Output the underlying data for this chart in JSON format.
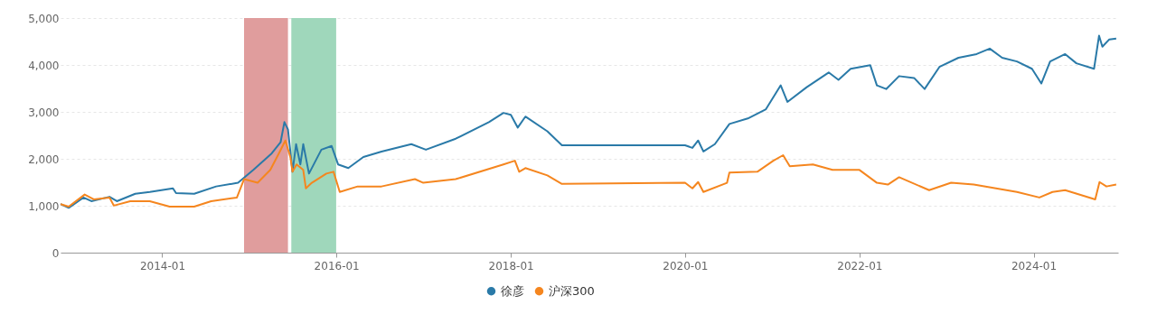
{
  "chart_data": {
    "type": "line",
    "xlim": [
      "2012-11-01",
      "2024-12-20"
    ],
    "xticks": [
      "2014-01",
      "2016-01",
      "2018-01",
      "2020-01",
      "2022-01",
      "2024-01"
    ],
    "ylim": [
      0,
      5000
    ],
    "yticks": [
      0,
      {
        "value": 1000,
        "label": "1,000"
      },
      {
        "value": 2000,
        "label": "2,000"
      },
      {
        "value": 3000,
        "label": "3,000"
      },
      {
        "value": 4000,
        "label": "4,000"
      },
      {
        "value": 5000,
        "label": "5,000"
      }
    ],
    "grid": "y",
    "legend": "bottom",
    "marker": "none",
    "line_style": "solid",
    "bands": [
      {
        "axis": "x",
        "from": "2014-12-10",
        "to": "2015-06-12",
        "color": "#e09d9d"
      },
      {
        "axis": "x",
        "from": "2015-06-26",
        "to": "2015-12-31",
        "color": "#9fd7bb"
      }
    ],
    "series": [
      {
        "name": "徐彦",
        "color": "#2a7aa8",
        "x": [
          "2012-11-01",
          "2012-12-05",
          "2013-02-05",
          "2013-03-10",
          "2013-05-25",
          "2013-06-25",
          "2013-09-10",
          "2013-11-10",
          "2014-02-15",
          "2014-02-28",
          "2014-05-15",
          "2014-08-15",
          "2014-11-15",
          "2015-01-18",
          "2015-04-05",
          "2015-05-12",
          "2015-05-28",
          "2015-06-12",
          "2015-07-01",
          "2015-07-16",
          "2015-08-03",
          "2015-08-15",
          "2015-09-08",
          "2015-10-30",
          "2015-12-12",
          "2016-01-08",
          "2016-02-20",
          "2016-04-23",
          "2016-07-08",
          "2016-11-10",
          "2017-01-10",
          "2017-05-15",
          "2017-10-01",
          "2017-12-01",
          "2018-01-01",
          "2018-01-30",
          "2018-03-03",
          "2018-06-03",
          "2018-08-03",
          "2020-01-01",
          "2020-02-01",
          "2020-02-25",
          "2020-03-18",
          "2020-05-05",
          "2020-07-05",
          "2020-09-20",
          "2020-12-05",
          "2021-02-05",
          "2021-03-05",
          "2021-05-25",
          "2021-08-25",
          "2021-10-05",
          "2021-11-25",
          "2022-02-15",
          "2022-03-15",
          "2022-04-23",
          "2022-06-16",
          "2022-08-18",
          "2022-10-01",
          "2022-12-02",
          "2023-02-20",
          "2023-05-07",
          "2023-07-01",
          "2023-08-22",
          "2023-10-23",
          "2023-12-25",
          "2024-02-02",
          "2024-03-10",
          "2024-05-12",
          "2024-06-28",
          "2024-09-10",
          "2024-10-01",
          "2024-10-15",
          "2024-11-13",
          "2024-12-12"
        ],
        "values": [
          1035,
          955,
          1175,
          1097,
          1190,
          1097,
          1254,
          1293,
          1371,
          1270,
          1254,
          1411,
          1489,
          1763,
          2116,
          2351,
          2782,
          2625,
          1724,
          2312,
          1881,
          2312,
          1685,
          2194,
          2273,
          1881,
          1802,
          2038,
          2155,
          2312,
          2194,
          2429,
          2782,
          2978,
          2939,
          2665,
          2900,
          2586,
          2288,
          2288,
          2233,
          2390,
          2155,
          2312,
          2743,
          2860,
          3056,
          3566,
          3213,
          3527,
          3840,
          3683,
          3918,
          3997,
          3566,
          3487,
          3762,
          3723,
          3487,
          3958,
          4154,
          4232,
          4349,
          4154,
          4075,
          3918,
          3605,
          4075,
          4232,
          4036,
          3918,
          4624,
          4389,
          4545,
          4561
        ]
      },
      {
        "name": "沪深300",
        "color": "#f5861f",
        "x": [
          "2012-11-01",
          "2012-12-05",
          "2013-02-10",
          "2013-03-20",
          "2013-05-25",
          "2013-06-12",
          "2013-08-20",
          "2013-11-10",
          "2014-02-01",
          "2014-05-15",
          "2014-07-25",
          "2014-11-10",
          "2014-12-10",
          "2015-02-05",
          "2015-03-30",
          "2015-05-05",
          "2015-06-01",
          "2015-06-22",
          "2015-07-01",
          "2015-07-18",
          "2015-08-15",
          "2015-08-26",
          "2015-09-20",
          "2015-11-20",
          "2015-12-20",
          "2016-01-15",
          "2016-03-30",
          "2016-07-08",
          "2016-11-25",
          "2016-12-30",
          "2017-05-15",
          "2017-12-01",
          "2018-01-18",
          "2018-02-05",
          "2018-03-03",
          "2018-06-03",
          "2018-08-03",
          "2020-01-01",
          "2020-02-01",
          "2020-02-25",
          "2020-03-18",
          "2020-06-25",
          "2020-07-05",
          "2020-10-30",
          "2021-01-05",
          "2021-02-15",
          "2021-03-15",
          "2021-06-20",
          "2021-09-10",
          "2022-01-01",
          "2022-03-15",
          "2022-04-30",
          "2022-06-16",
          "2022-10-20",
          "2023-01-20",
          "2023-04-25",
          "2023-10-23",
          "2024-01-25",
          "2024-03-20",
          "2024-05-12",
          "2024-09-15",
          "2024-10-03",
          "2024-11-01",
          "2024-12-12"
        ],
        "values": [
          1035,
          980,
          1238,
          1136,
          1175,
          1003,
          1097,
          1097,
          980,
          980,
          1097,
          1175,
          1567,
          1489,
          1763,
          2116,
          2390,
          2038,
          1724,
          1881,
          1763,
          1371,
          1489,
          1685,
          1724,
          1293,
          1411,
          1411,
          1567,
          1489,
          1567,
          1881,
          1959,
          1724,
          1802,
          1646,
          1466,
          1489,
          1371,
          1505,
          1293,
          1489,
          1708,
          1724,
          1959,
          2077,
          1842,
          1881,
          1763,
          1763,
          1489,
          1450,
          1607,
          1332,
          1489,
          1450,
          1293,
          1175,
          1293,
          1332,
          1136,
          1505,
          1411,
          1450
        ]
      }
    ]
  }
}
